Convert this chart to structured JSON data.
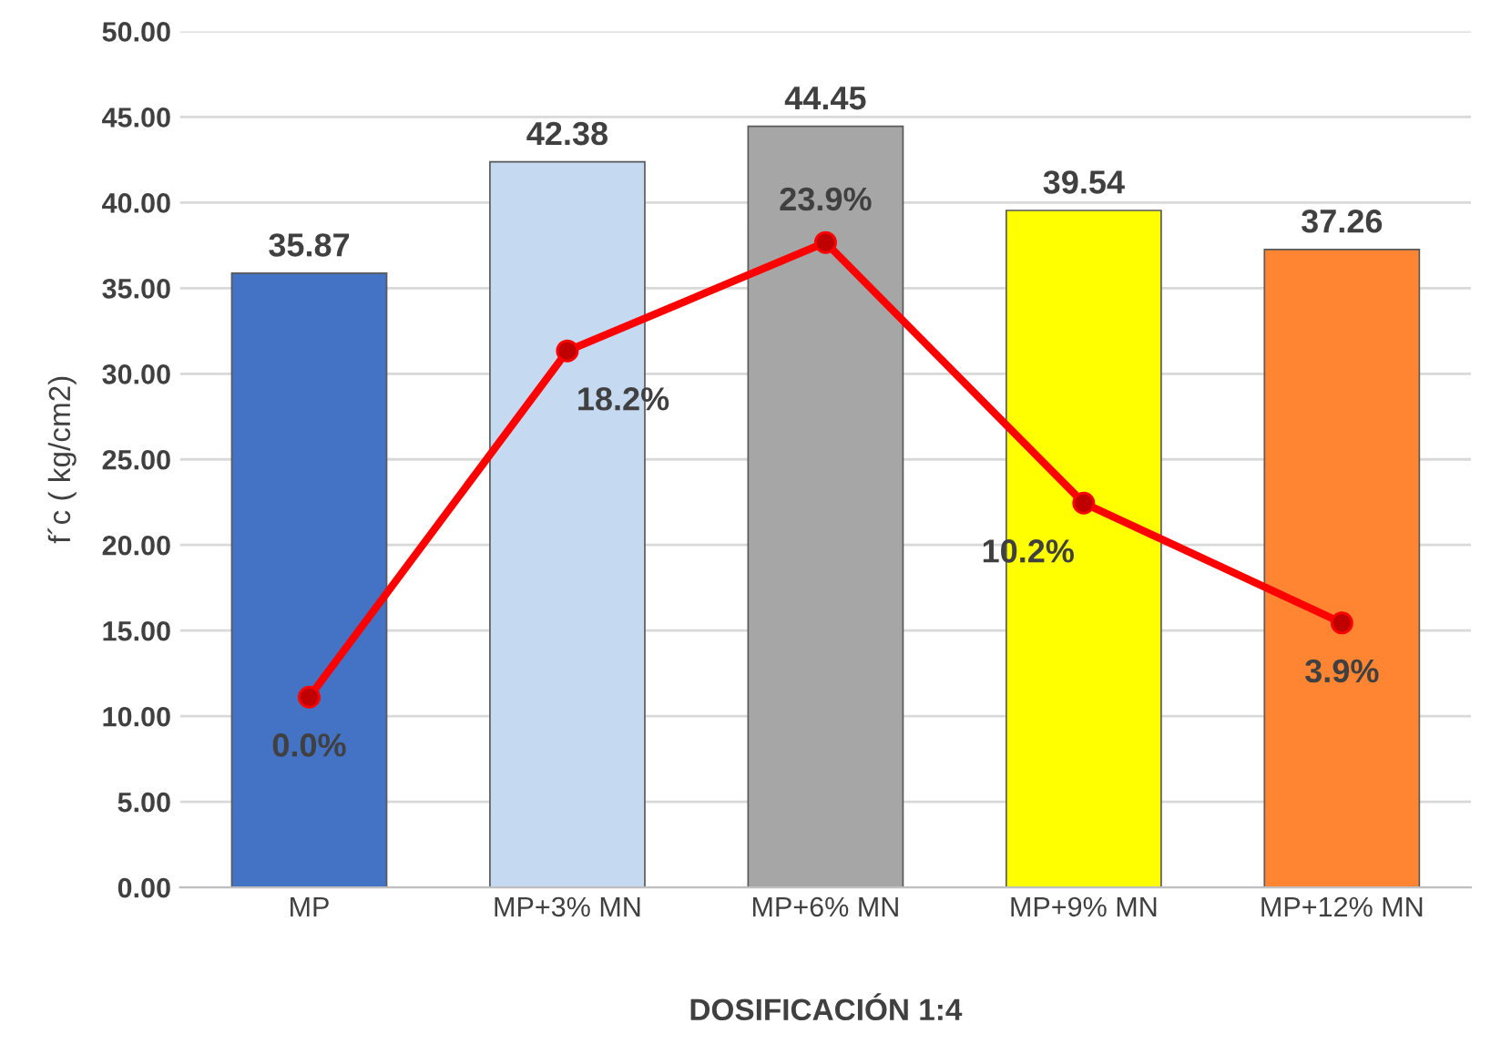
{
  "chart_data": {
    "type": "bar",
    "xlabel": "DOSIFICACIÓN 1:4",
    "ylabel": "f´c ( kg/cm2)",
    "categories": [
      "MP",
      "MP+3% MN",
      "MP+6% MN",
      "MP+9% MN",
      "MP+12% MN"
    ],
    "series": [
      {
        "values": [
          35.87,
          42.38,
          44.45,
          39.54,
          37.26
        ],
        "colors": [
          "#4472c4",
          "#c5d9f1",
          "#a6a6a6",
          "#ffff00",
          "#ff8533"
        ],
        "data_labels": true
      },
      {
        "type": "line",
        "axis": "y2",
        "color": "#ff0000",
        "marker": "circle",
        "values": [
          0.0,
          18.2,
          23.9,
          10.2,
          3.9
        ],
        "value_labels": [
          "0.0%",
          "18.2%",
          "23.9%",
          "10.2%",
          "3.9%"
        ]
      }
    ],
    "ylim": [
      0,
      50
    ],
    "yticks": [
      {
        "value": 0,
        "label": "0.00"
      },
      {
        "value": 5,
        "label": "5.00"
      },
      {
        "value": 10,
        "label": "10.00"
      },
      {
        "value": 15,
        "label": "15.00"
      },
      {
        "value": 20,
        "label": "20.00"
      },
      {
        "value": 25,
        "label": "25.00"
      },
      {
        "value": 30,
        "label": "30.00"
      },
      {
        "value": 35,
        "label": "35.00"
      },
      {
        "value": 40,
        "label": "40.00"
      },
      {
        "value": 45,
        "label": "45.00"
      },
      {
        "value": 50,
        "label": "50.00"
      }
    ],
    "y2lim": [
      -10,
      35
    ],
    "grid": "y"
  }
}
